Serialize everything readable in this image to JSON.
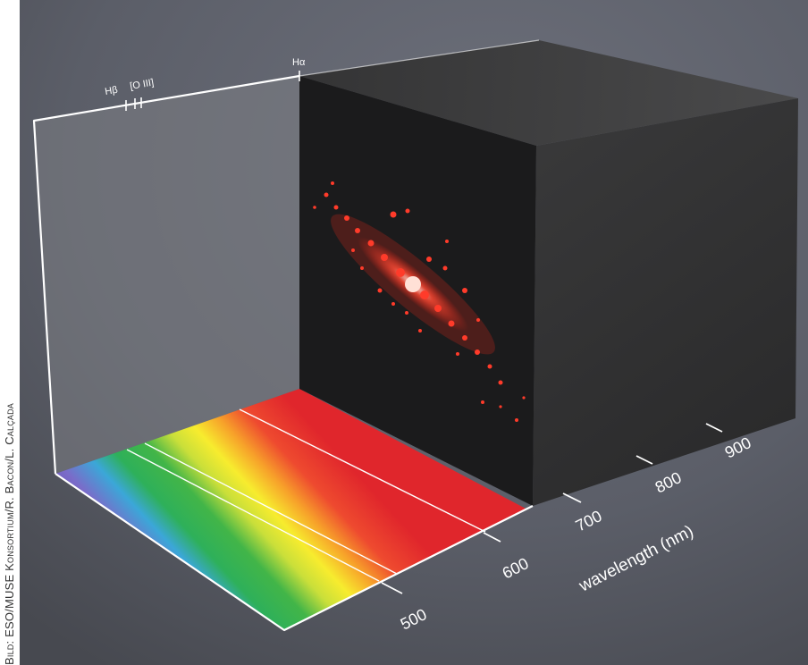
{
  "credit": {
    "prefix": "Bild",
    "text": ": ESO/MUSE Konsortium/R. Bacon/L. Calçada"
  },
  "line_markers": {
    "h_beta": "Hβ",
    "o_iii": "[O III]",
    "h_alpha": "Hα"
  },
  "wavelength_axis": {
    "label": "wavelength (nm)",
    "ticks": [
      "500",
      "600",
      "700",
      "800",
      "900"
    ]
  },
  "colors": {
    "background": "#5b5e68",
    "cube_front": "#1c1c1c",
    "cube_side": "#2f2f30",
    "cube_top": "#3a3a3b",
    "galaxy": "#ff3b2a",
    "frame": "#ffffff"
  }
}
